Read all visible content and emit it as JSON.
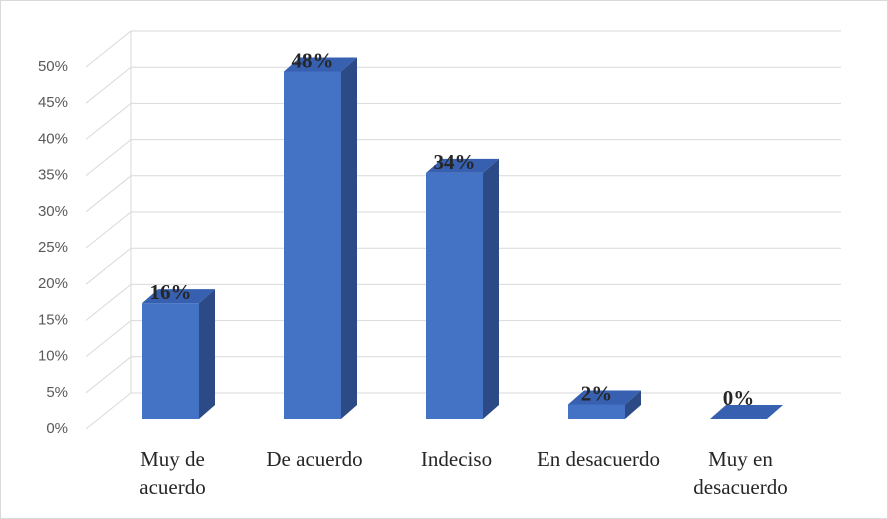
{
  "chart_data": {
    "type": "bar3d",
    "categories": [
      "Muy de acuerdo",
      "De acuerdo",
      "Indeciso",
      "En desacuerdo",
      "Muy en desacuerdo"
    ],
    "values": [
      16,
      48,
      34,
      2,
      0
    ],
    "value_labels": [
      "16%",
      "48%",
      "34%",
      "2%",
      "0%"
    ],
    "color": "#4472c4",
    "ylim": [
      0,
      50
    ],
    "yticks": [
      {
        "value": 0,
        "label": "0%"
      },
      {
        "value": 5,
        "label": "5%"
      },
      {
        "value": 10,
        "label": "10%"
      },
      {
        "value": 15,
        "label": "15%"
      },
      {
        "value": 20,
        "label": "20%"
      },
      {
        "value": 25,
        "label": "25%"
      },
      {
        "value": 30,
        "label": "30%"
      },
      {
        "value": 35,
        "label": "35%"
      },
      {
        "value": 40,
        "label": "40%"
      },
      {
        "value": 45,
        "label": "45%"
      },
      {
        "value": 50,
        "label": "50%"
      }
    ],
    "grid": true
  }
}
